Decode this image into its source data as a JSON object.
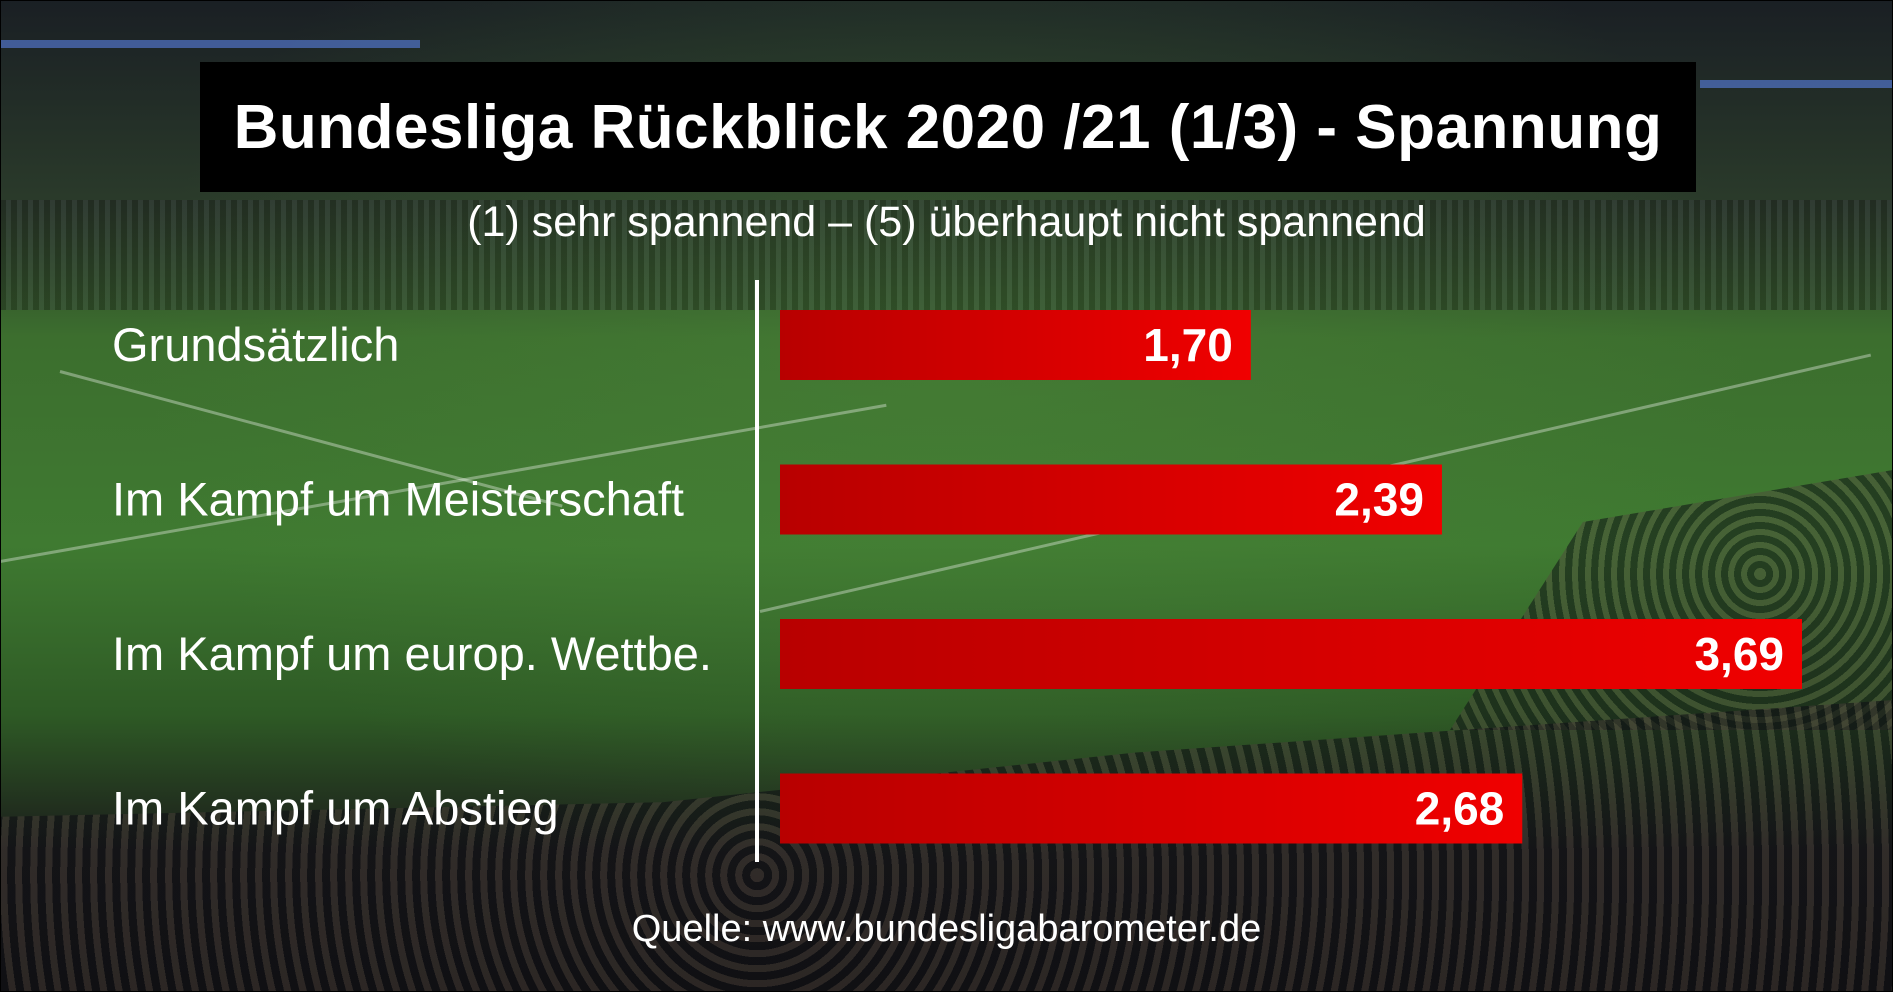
{
  "title": "Bundesliga Rückblick 2020 /21 (1/3) - Spannung",
  "subtitle": "(1) sehr spannend – (5) überhaupt nicht spannend",
  "source": "Quelle: www.bundesligabarometer.de",
  "colors": {
    "bar": "#e00000",
    "bar_dark": "#a80000",
    "title_bg": "#000000",
    "text": "#ffffff",
    "axis": "#ffffff"
  },
  "chart_data": {
    "type": "bar",
    "orientation": "horizontal",
    "title": "Bundesliga Rückblick 2020 /21 (1/3) - Spannung",
    "subtitle": "(1) sehr spannend – (5) überhaupt nicht spannend",
    "categories": [
      "Grundsätzlich",
      "Im Kampf um Meisterschaft",
      "Im Kampf um europ. Wettbe.",
      "Im Kampf um Abstieg"
    ],
    "values": [
      1.7,
      2.39,
      3.69,
      2.68
    ],
    "value_labels": [
      "1,70",
      "2,39",
      "3,69",
      "2,68"
    ],
    "xlim": [
      0,
      3.69
    ],
    "grid": false,
    "legend": "none"
  }
}
